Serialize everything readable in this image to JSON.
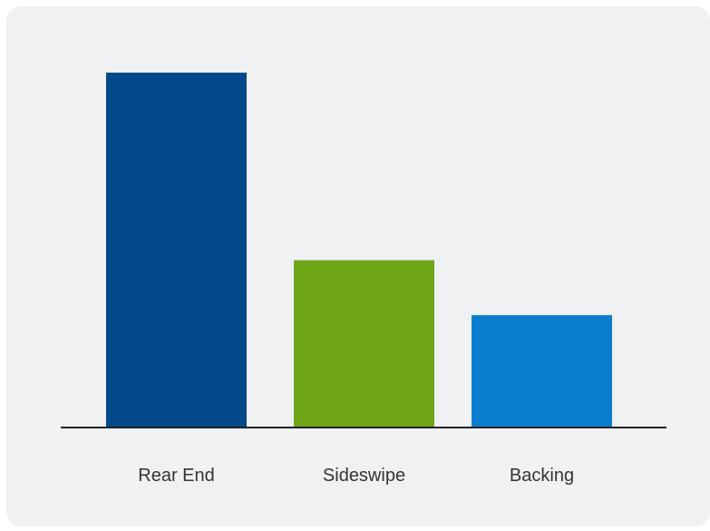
{
  "chart_data": {
    "type": "bar",
    "categories": [
      "Rear End",
      "Sideswipe",
      "Backing"
    ],
    "values": [
      100,
      47,
      31.5
    ],
    "colors": [
      "#024a8c",
      "#6fa618",
      "#0b7dcf"
    ],
    "title": "",
    "xlabel": "",
    "ylabel": "",
    "ylim": [
      0,
      100
    ],
    "grid": false,
    "axis_color": "#222222",
    "label_color": "#333333"
  }
}
